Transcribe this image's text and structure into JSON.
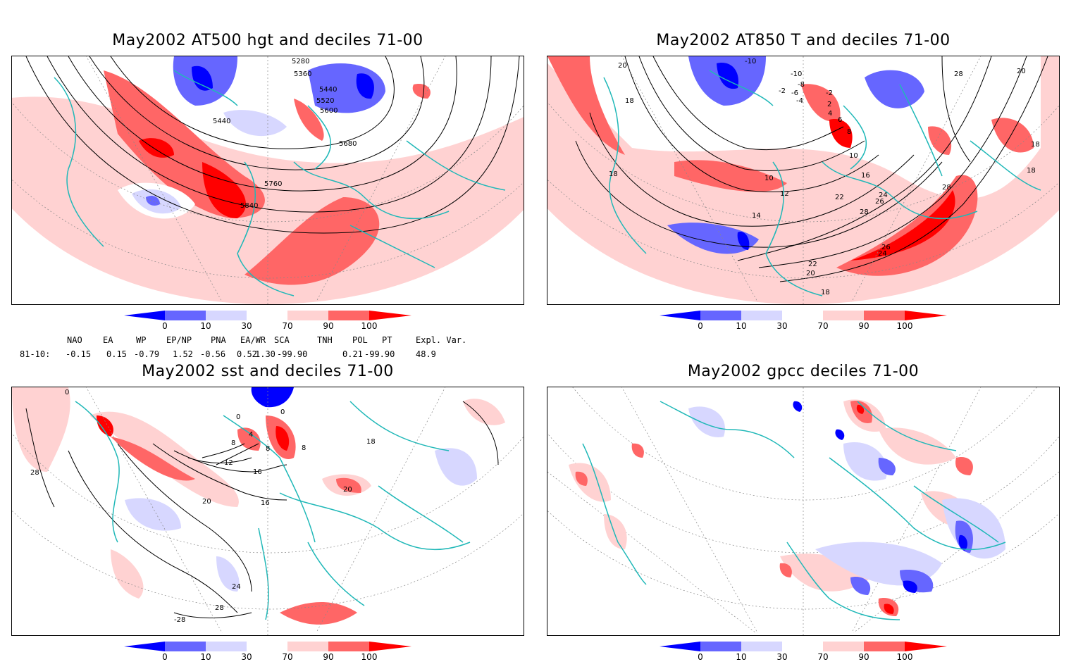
{
  "panels": [
    {
      "title": "May2002 AT500 hgt and deciles 71-00",
      "contour_labels": [
        "5280",
        "5360",
        "5440",
        "5520",
        "5600",
        "5440",
        "5680",
        "5760",
        "5840"
      ]
    },
    {
      "title": "May2002 AT850 T and deciles 71-00",
      "contour_labels": [
        "-10",
        "-10",
        "-8",
        "-6",
        "-2",
        "-4",
        "-2",
        "2",
        "4",
        "6",
        "8",
        "10",
        "16",
        "18",
        "20",
        "18",
        "10",
        "12",
        "14",
        "22",
        "24",
        "26",
        "28",
        "26",
        "24",
        "22",
        "20",
        "18",
        "28",
        "28",
        "18",
        "18",
        "20"
      ]
    },
    {
      "title": "May2002 sst and deciles 71-00",
      "contour_labels": [
        "0",
        "0",
        "0",
        "4",
        "8",
        "8",
        "8",
        "12",
        "16",
        "16",
        "20",
        "20",
        "24",
        "28",
        "28",
        "-28",
        "18"
      ]
    },
    {
      "title": "May2002 gpcc deciles 71-00",
      "contour_labels": []
    }
  ],
  "colorbar": {
    "ticks": [
      "0",
      "10",
      "30",
      "70",
      "90",
      "100"
    ],
    "colors": [
      "#0000ff",
      "#6666ff",
      "#d7d7ff",
      "#ffffff",
      "#ffd2d2",
      "#ff6666",
      "#ff0000"
    ]
  },
  "indices": {
    "headers": [
      "NAO",
      "EA",
      "WP",
      "EP/NP",
      "PNA",
      "EA/WR",
      "SCA",
      "TNH",
      "POL",
      "PT",
      "Expl. Var."
    ],
    "row_label": "81-10:",
    "values": [
      "-0.15",
      "0.15",
      "-0.79",
      "1.52",
      "-0.56",
      "0.52",
      "1.30",
      "-99.90",
      "0.21",
      "-99.90",
      "48.9"
    ]
  },
  "colors": {
    "coast": "#20b8b8",
    "contour": "#000000",
    "grid": "#888888"
  }
}
